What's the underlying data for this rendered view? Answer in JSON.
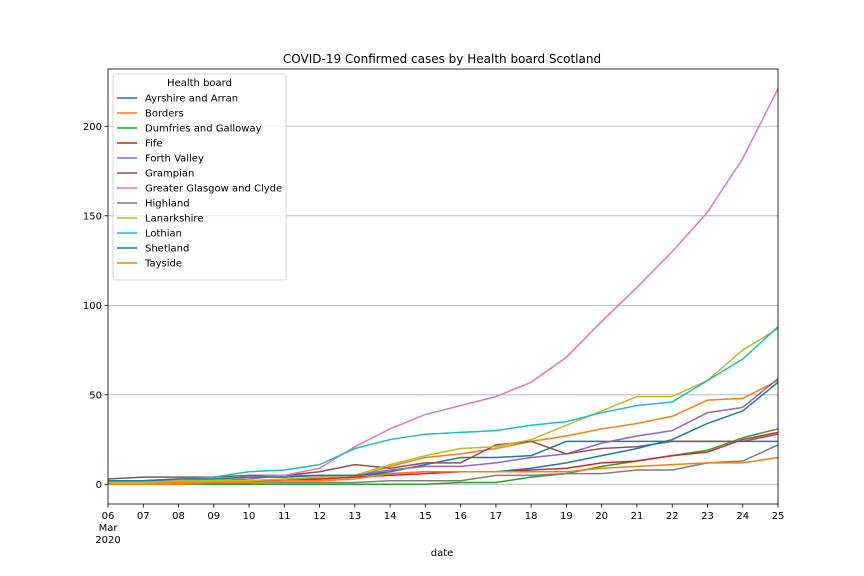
{
  "chart_data": {
    "type": "line",
    "title": "COVID-19 Confirmed cases by Health board Scotland",
    "xlabel": "date",
    "ylabel": "",
    "x": [
      "06",
      "07",
      "08",
      "09",
      "10",
      "11",
      "12",
      "13",
      "14",
      "15",
      "16",
      "17",
      "18",
      "19",
      "20",
      "21",
      "22",
      "23",
      "24",
      "25"
    ],
    "x_first_sublabels": [
      "Mar",
      "2020"
    ],
    "xlim": [
      6,
      25
    ],
    "ylim": [
      -11,
      232
    ],
    "yticks": [
      0,
      50,
      100,
      150,
      200
    ],
    "grid": "horizontal",
    "legend": {
      "title": "Health board",
      "placement": "top-left"
    },
    "series": [
      {
        "name": "Ayrshire and Arran",
        "color": "#1f77b4",
        "values": [
          1,
          1,
          1,
          1,
          1,
          2,
          4,
          5,
          7,
          11,
          15,
          15,
          16,
          24,
          24,
          24,
          24,
          24,
          24,
          24
        ]
      },
      {
        "name": "Borders",
        "color": "#ff7f0e",
        "values": [
          1,
          1,
          1,
          1,
          2,
          3,
          3,
          4,
          10,
          15,
          17,
          20,
          24,
          27,
          31,
          34,
          38,
          47,
          48,
          58
        ]
      },
      {
        "name": "Dumfries and Galloway",
        "color": "#2ca02c",
        "values": [
          0,
          0,
          0,
          0,
          0,
          0,
          0,
          0,
          0,
          0,
          1,
          1,
          4,
          6,
          10,
          13,
          16,
          19,
          26,
          31
        ]
      },
      {
        "name": "Fife",
        "color": "#d62728",
        "values": [
          2,
          2,
          2,
          2,
          2,
          2,
          3,
          4,
          5,
          6,
          7,
          7,
          8,
          9,
          12,
          13,
          16,
          18,
          25,
          29
        ]
      },
      {
        "name": "Forth Valley",
        "color": "#9467bd",
        "values": [
          2,
          2,
          2,
          2,
          3,
          5,
          5,
          5,
          8,
          10,
          10,
          12,
          15,
          17,
          23,
          27,
          30,
          40,
          43,
          59
        ]
      },
      {
        "name": "Grampian",
        "color": "#8c564b",
        "values": [
          3,
          4,
          4,
          4,
          5,
          5,
          7,
          11,
          9,
          12,
          12,
          22,
          24,
          17,
          20,
          21,
          24,
          24,
          24,
          28
        ]
      },
      {
        "name": "Greater Glasgow and Clyde",
        "color": "#e377c2",
        "values": [
          2,
          2,
          3,
          3,
          4,
          5,
          9,
          21,
          31,
          39,
          44,
          49,
          57,
          71,
          91,
          110,
          130,
          152,
          182,
          221
        ]
      },
      {
        "name": "Highland",
        "color": "#7f7f7f",
        "values": [
          0,
          0,
          0,
          1,
          1,
          1,
          1,
          1,
          2,
          2,
          2,
          5,
          5,
          6,
          6,
          8,
          8,
          12,
          13,
          22
        ]
      },
      {
        "name": "Lanarkshire",
        "color": "#bcbd22",
        "values": [
          1,
          1,
          2,
          2,
          2,
          3,
          4,
          5,
          11,
          16,
          20,
          21,
          25,
          33,
          41,
          49,
          49,
          58,
          75,
          87
        ]
      },
      {
        "name": "Lothian",
        "color": "#17becf",
        "values": [
          2,
          2,
          3,
          4,
          7,
          8,
          11,
          20,
          25,
          28,
          29,
          30,
          33,
          35,
          40,
          44,
          46,
          58,
          70,
          88
        ]
      },
      {
        "name": "Shetland",
        "color": "#1f77b4",
        "values": [
          2,
          2,
          3,
          3,
          4,
          4,
          5,
          5,
          6,
          7,
          7,
          7,
          9,
          12,
          16,
          20,
          25,
          34,
          41,
          57
        ]
      },
      {
        "name": "Tayside",
        "color": "#ff7f0e",
        "values": [
          0,
          0,
          0,
          1,
          1,
          2,
          2,
          3,
          6,
          7,
          7,
          7,
          7,
          7,
          9,
          10,
          11,
          12,
          12,
          15
        ]
      }
    ]
  }
}
